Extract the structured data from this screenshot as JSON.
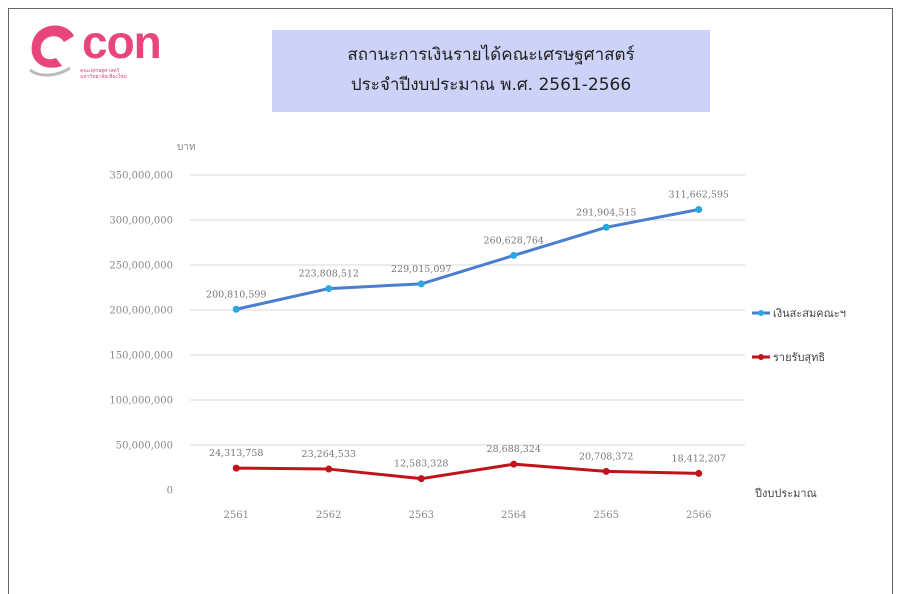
{
  "logo": {
    "text": "con",
    "sub_line1": "คณะเศรษฐศาสตร์",
    "sub_line2": "มหาวิทยาลัยเชียงใหม่"
  },
  "title": {
    "line1": "สถานะการเงินรายได้คณะเศรษฐศาสตร์",
    "line2": "ประจำปีงบประมาณ พ.ศ. 2561-2566"
  },
  "colors": {
    "title_bg": "#cdd2f8",
    "logo": "#e8457d",
    "series_blue": "#4a7ed0",
    "series_blue_marker": "#2aa8e0",
    "series_red": "#c0141c"
  },
  "chart_data": {
    "type": "line",
    "ylabel": "บาท",
    "xlabel": "ปีงบประมาณ",
    "categories": [
      "2561",
      "2562",
      "2563",
      "2564",
      "2565",
      "2566"
    ],
    "ylim": [
      0,
      350000000
    ],
    "yticks": [
      0,
      50000000,
      100000000,
      150000000,
      200000000,
      250000000,
      300000000,
      350000000
    ],
    "ytick_labels": [
      "0",
      "50,000,000",
      "100,000,000",
      "150,000,000",
      "200,000,000",
      "250,000,000",
      "300,000,000",
      "350,000,000"
    ],
    "grid": true,
    "legend_position": "right",
    "series": [
      {
        "name": "เงินสะสมคณะฯ",
        "values": [
          200810599,
          223808512,
          229015097,
          260628764,
          291904515,
          311662595
        ],
        "labels": [
          "200,810,599",
          "223,808,512",
          "229,015,097",
          "260,628,764",
          "291,904,515",
          "311,662,595"
        ]
      },
      {
        "name": "รายรับสุทธิ",
        "values": [
          24313758,
          23264533,
          12583328,
          28688324,
          20708372,
          18412207
        ],
        "labels": [
          "24,313,758",
          "23,264,533",
          "12,583,328",
          "28,688,324",
          "20,708,372",
          "18,412,207"
        ]
      }
    ]
  }
}
